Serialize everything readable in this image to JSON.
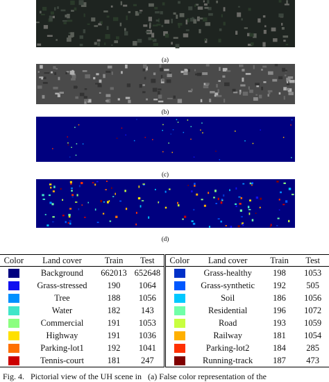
{
  "figure": {
    "panels": [
      {
        "label": "(a)"
      },
      {
        "label": "(b)"
      },
      {
        "label": "(c)"
      },
      {
        "label": "(d)"
      }
    ],
    "table": {
      "columns": [
        "Color",
        "Land cover",
        "Train",
        "Test"
      ],
      "left_rows": [
        {
          "swatch": "#00007f",
          "land_cover": "Background",
          "train": 662013,
          "test": 652648
        },
        {
          "swatch": "#1010f0",
          "land_cover": "Grass-stressed",
          "train": 190,
          "test": 1064
        },
        {
          "swatch": "#0090ff",
          "land_cover": "Tree",
          "train": 188,
          "test": 1056
        },
        {
          "swatch": "#40e6c8",
          "land_cover": "Water",
          "train": 182,
          "test": 143
        },
        {
          "swatch": "#8cff80",
          "land_cover": "Commercial",
          "train": 191,
          "test": 1053
        },
        {
          "swatch": "#ffe000",
          "land_cover": "Highway",
          "train": 191,
          "test": 1036
        },
        {
          "swatch": "#ff7000",
          "land_cover": "Parking-lot1",
          "train": 192,
          "test": 1041
        },
        {
          "swatch": "#cc0000",
          "land_cover": "Tennis-court",
          "train": 181,
          "test": 247
        }
      ],
      "right_rows": [
        {
          "swatch": "#0030c8",
          "land_cover": "Grass-healthy",
          "train": 198,
          "test": 1053
        },
        {
          "swatch": "#0058ff",
          "land_cover": "Grass-synthetic",
          "train": 192,
          "test": 505
        },
        {
          "swatch": "#00c8ff",
          "land_cover": "Soil",
          "train": 186,
          "test": 1056
        },
        {
          "swatch": "#70ffa8",
          "land_cover": "Residential",
          "train": 196,
          "test": 1072
        },
        {
          "swatch": "#c8ff40",
          "land_cover": "Road",
          "train": 193,
          "test": 1059
        },
        {
          "swatch": "#ffb000",
          "land_cover": "Railway",
          "train": 181,
          "test": 1054
        },
        {
          "swatch": "#ff3000",
          "land_cover": "Parking-lot2",
          "train": 184,
          "test": 285
        },
        {
          "swatch": "#800000",
          "land_cover": "Running-track",
          "train": 187,
          "test": 473
        }
      ]
    },
    "caption": "Fig. 4.   Pictorial view of the UH scene in   (a) False color representation of the"
  }
}
